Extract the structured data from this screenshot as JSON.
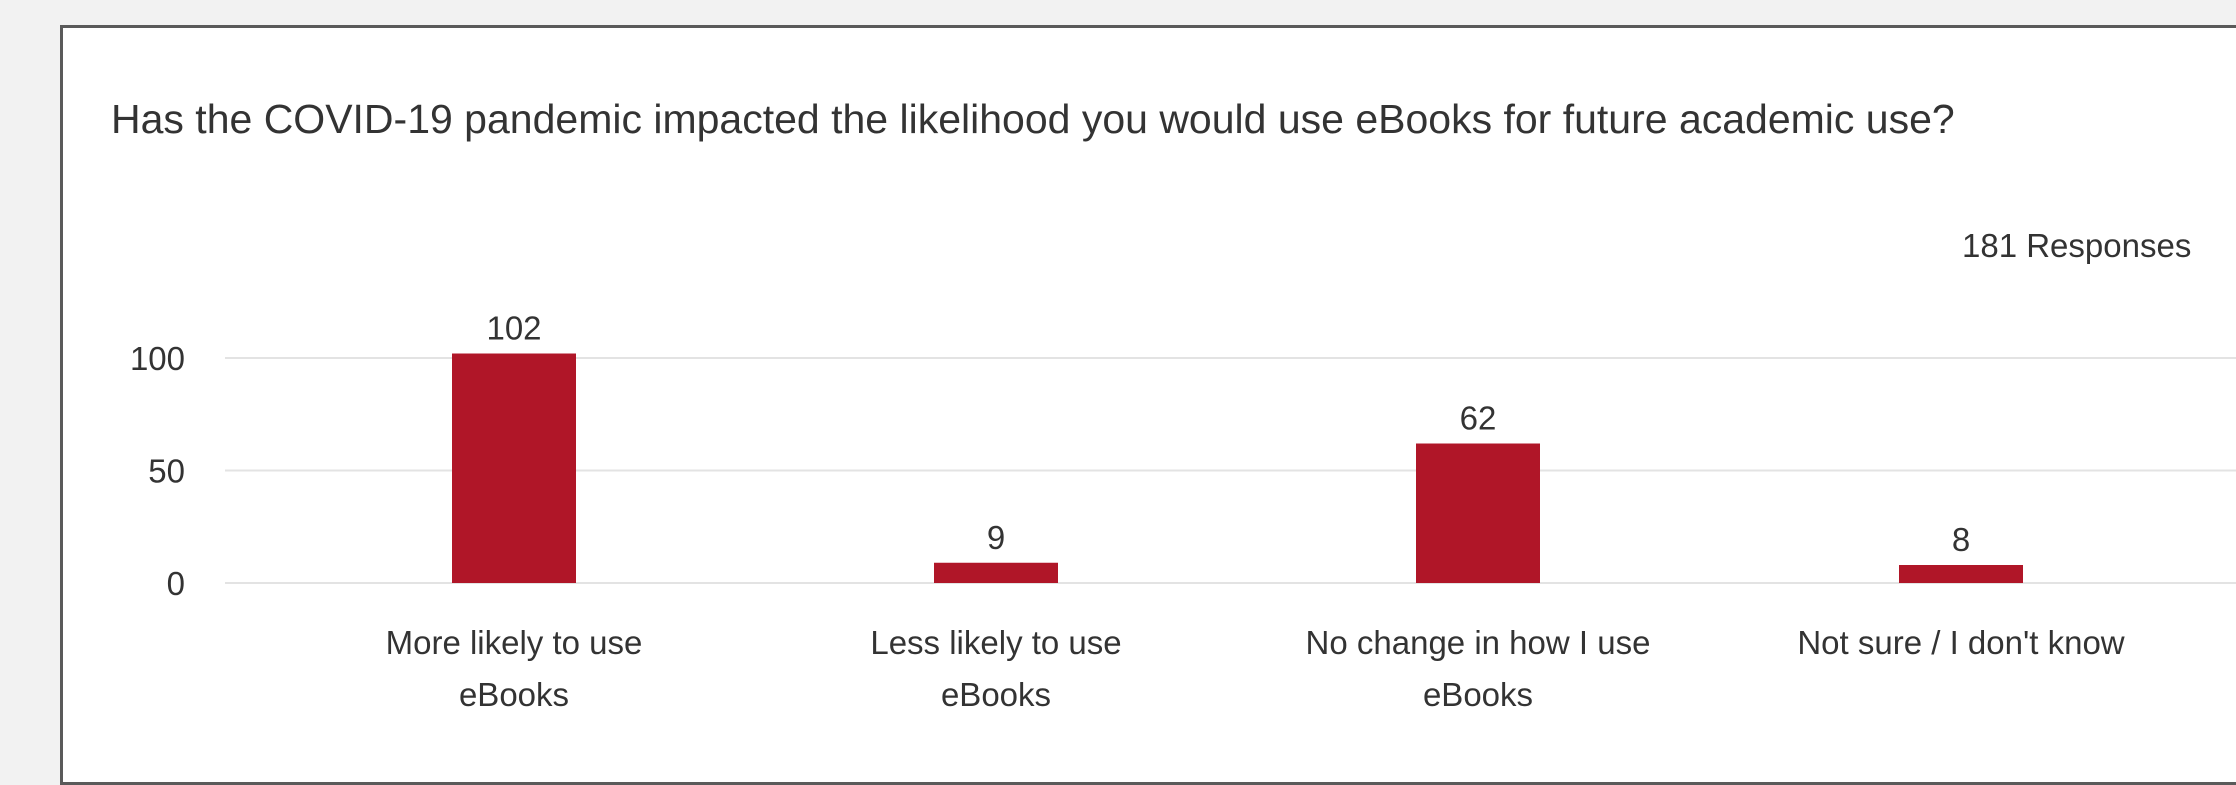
{
  "question": {
    "title": "Has the COVID-19 pandemic impacted the likelihood you would use eBooks for future academic use?",
    "responses_label": "181 Responses"
  },
  "chart_data": {
    "type": "bar",
    "categories": [
      [
        "More likely to use",
        "eBooks"
      ],
      [
        "Less likely to use",
        "eBooks"
      ],
      [
        "No change in how I use",
        "eBooks"
      ],
      [
        "Not sure / I don't know"
      ]
    ],
    "values": [
      102,
      9,
      62,
      8
    ],
    "data_labels": [
      "102",
      "9",
      "62",
      "8"
    ],
    "yticks": [
      0,
      50,
      100
    ],
    "ytick_labels": [
      "0",
      "50",
      "100"
    ],
    "ylim": [
      0,
      110
    ],
    "grid": true,
    "bar_color": "#b01628",
    "gridline_color": "#e3e3e3"
  }
}
